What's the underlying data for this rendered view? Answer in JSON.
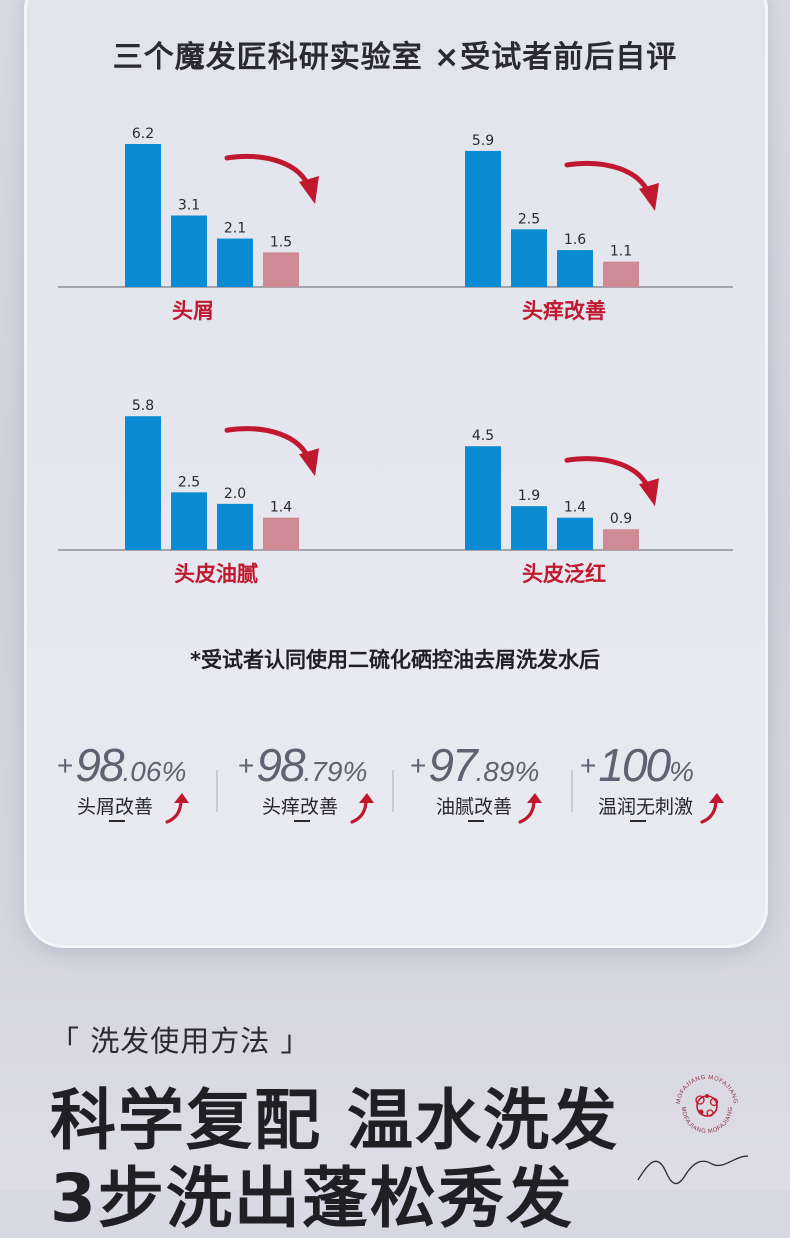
{
  "title": "三个魔发匠科研实验室 ×受试者前后自评",
  "colors": {
    "blue": "#0a8bd2",
    "pink": "#d08a96",
    "accent": "#c0182f",
    "axis": "#8e8e96"
  },
  "chart_data": [
    {
      "type": "bar",
      "title": "头屑",
      "values": [
        6.2,
        3.1,
        2.1,
        1.5
      ],
      "labels": [
        "6.2",
        "3.1",
        "2.1",
        "1.5"
      ],
      "ylim": [
        0,
        6.2
      ]
    },
    {
      "type": "bar",
      "title": "头痒改善",
      "values": [
        5.9,
        2.5,
        1.6,
        1.1
      ],
      "labels": [
        "5.9",
        "2.5",
        "1.6",
        "1.1"
      ],
      "ylim": [
        0,
        6.2
      ]
    },
    {
      "type": "bar",
      "title": "头皮油腻",
      "values": [
        5.8,
        2.5,
        2.0,
        1.4
      ],
      "labels": [
        "5.8",
        "2.5",
        "2.0",
        "1.4"
      ],
      "ylim": [
        0,
        6.2
      ]
    },
    {
      "type": "bar",
      "title": "头皮泛红",
      "values": [
        4.5,
        1.9,
        1.4,
        0.9
      ],
      "labels": [
        "4.5",
        "1.9",
        "1.4",
        "0.9"
      ],
      "ylim": [
        0,
        6.2
      ]
    }
  ],
  "note": "*受试者认同使用二硫化硒控油去屑洗发水后",
  "stats": [
    {
      "plus": "+",
      "big": "98",
      "small": ".06%",
      "label": "头屑改善"
    },
    {
      "plus": "+",
      "big": "98",
      "small": ".79%",
      "label": "头痒改善"
    },
    {
      "plus": "+",
      "big": "97",
      "small": ".89%",
      "label": "油腻改善"
    },
    {
      "plus": "+",
      "big": "100",
      "small": "%",
      "label": "温润无刺激"
    }
  ],
  "howto": "「 洗发使用方法 」",
  "headline": {
    "line1": "科学复配 温水洗发",
    "line2": "3步洗出蓬松秀发"
  },
  "logo_text": "MOFAJIANG MOFAJIANG"
}
